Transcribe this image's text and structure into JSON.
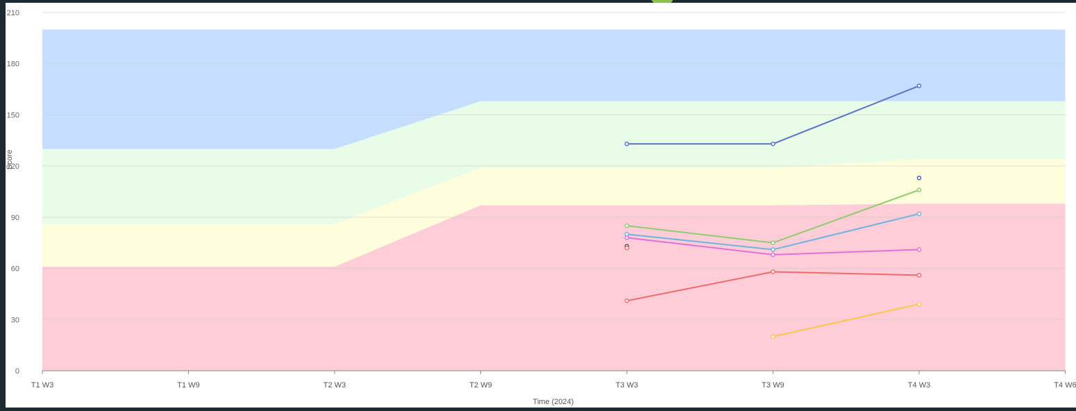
{
  "chart_data": {
    "type": "line",
    "title": "",
    "xlabel": "Time (2024)",
    "ylabel": "Score",
    "categories": [
      "T1 W3",
      "T1 W9",
      "T2 W3",
      "T2 W9",
      "T3 W3",
      "T3 W9",
      "T4 W3",
      "T4 W6"
    ],
    "ylim": [
      0,
      210
    ],
    "yticks": [
      0,
      30,
      60,
      90,
      120,
      150,
      180,
      210
    ],
    "grid": true,
    "bands": [
      {
        "color": "#fecdd8",
        "upper": [
          61,
          61,
          61,
          97,
          97,
          97,
          98,
          98
        ]
      },
      {
        "color": "#fefedc",
        "upper": [
          86,
          86,
          86,
          119,
          119,
          119,
          124,
          124
        ]
      },
      {
        "color": "#e8fce8",
        "upper": [
          130,
          130,
          130,
          158,
          158,
          158,
          158,
          158
        ]
      },
      {
        "color": "#c6deff",
        "upper": [
          200,
          200,
          200,
          200,
          200,
          200,
          200,
          200
        ]
      }
    ],
    "series": [
      {
        "color": "#5b73c7",
        "values": [
          null,
          null,
          null,
          null,
          133,
          133,
          167,
          null
        ]
      },
      {
        "color": "#8fcc6c",
        "values": [
          null,
          null,
          null,
          null,
          85,
          75,
          106,
          null
        ]
      },
      {
        "color": "#6fb3e0",
        "values": [
          null,
          null,
          null,
          null,
          80,
          71,
          92,
          null
        ]
      },
      {
        "color": "#e06fd8",
        "values": [
          null,
          null,
          null,
          null,
          78,
          68,
          71,
          null
        ]
      },
      {
        "color": "#ef6b6b",
        "values": [
          null,
          null,
          null,
          null,
          41,
          58,
          56,
          null
        ]
      },
      {
        "color": "#f8c84a",
        "values": [
          null,
          null,
          null,
          null,
          null,
          20,
          39,
          null
        ]
      },
      {
        "color": "#4a5fb8",
        "values": [
          null,
          null,
          null,
          null,
          null,
          null,
          113,
          null
        ]
      },
      {
        "color": "#555555",
        "values": [
          null,
          null,
          null,
          null,
          73,
          null,
          null,
          null
        ]
      },
      {
        "color": "#ef6b6b",
        "values": [
          null,
          null,
          null,
          null,
          72,
          null,
          null,
          null
        ]
      }
    ]
  }
}
